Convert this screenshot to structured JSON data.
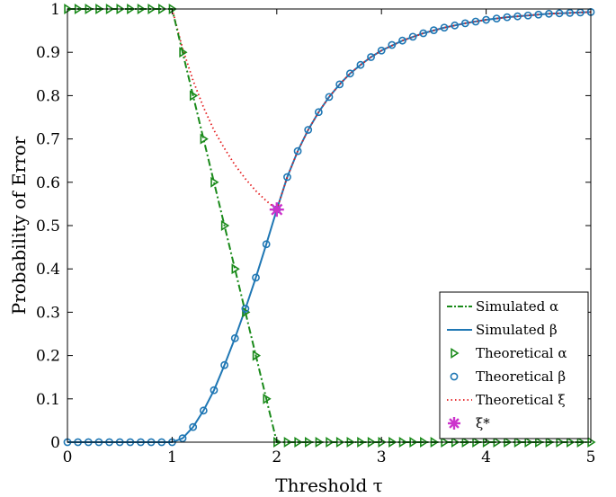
{
  "chart_data": {
    "type": "line",
    "xlabel": "Threshold τ",
    "ylabel": "Probability of Error",
    "xlim": [
      0,
      5
    ],
    "ylim": [
      0,
      1
    ],
    "x_ticks": [
      0,
      1,
      2,
      3,
      4,
      5
    ],
    "y_ticks": [
      0,
      0.1,
      0.2,
      0.3,
      0.4,
      0.5,
      0.6,
      0.7,
      0.8,
      0.9,
      1
    ],
    "grid": false,
    "legend_position": "bottom-right",
    "colors": {
      "alpha": "#1a8a1a",
      "beta": "#1f77b4",
      "xi": "#e41a1c",
      "xi_star": "#cc33cc"
    },
    "series": [
      {
        "name": "Simulated α",
        "style": "dash-dot",
        "x": [
          0,
          1,
          1.1,
          1.2,
          1.3,
          1.4,
          1.5,
          1.6,
          1.7,
          1.8,
          1.9,
          2,
          5
        ],
        "y": [
          1,
          1,
          0.9,
          0.8,
          0.7,
          0.6,
          0.5,
          0.4,
          0.3,
          0.2,
          0.1,
          0,
          0
        ]
      },
      {
        "name": "Simulated β",
        "style": "solid",
        "x": [
          0,
          1,
          1.1,
          1.2,
          1.3,
          1.4,
          1.5,
          1.6,
          1.7,
          1.8,
          1.9,
          2,
          2.1,
          2.2,
          2.3,
          2.4,
          2.5,
          2.6,
          2.7,
          2.8,
          2.9,
          3,
          3.2,
          3.4,
          3.6,
          3.8,
          4,
          4.2,
          4.4,
          4.6,
          4.8,
          5
        ],
        "y": [
          0,
          0,
          0.009,
          0.035,
          0.073,
          0.12,
          0.178,
          0.24,
          0.308,
          0.38,
          0.457,
          0.537,
          0.612,
          0.672,
          0.721,
          0.762,
          0.797,
          0.826,
          0.851,
          0.871,
          0.889,
          0.904,
          0.927,
          0.944,
          0.957,
          0.967,
          0.975,
          0.981,
          0.985,
          0.989,
          0.991,
          0.993
        ]
      },
      {
        "name": "Theoretical α",
        "style": "marker-triangle-right",
        "x": [
          0,
          0.1,
          0.2,
          0.3,
          0.4,
          0.5,
          0.6,
          0.7,
          0.8,
          0.9,
          1,
          1.1,
          1.2,
          1.3,
          1.4,
          1.5,
          1.6,
          1.7,
          1.8,
          1.9,
          2,
          2.1,
          2.2,
          2.3,
          2.4,
          2.5,
          2.6,
          2.7,
          2.8,
          2.9,
          3,
          3.1,
          3.2,
          3.3,
          3.4,
          3.5,
          3.6,
          3.7,
          3.8,
          3.9,
          4,
          4.1,
          4.2,
          4.3,
          4.4,
          4.5,
          4.6,
          4.7,
          4.8,
          4.9,
          5
        ],
        "y": [
          1,
          1,
          1,
          1,
          1,
          1,
          1,
          1,
          1,
          1,
          1,
          0.9,
          0.8,
          0.7,
          0.6,
          0.5,
          0.4,
          0.3,
          0.2,
          0.1,
          0,
          0,
          0,
          0,
          0,
          0,
          0,
          0,
          0,
          0,
          0,
          0,
          0,
          0,
          0,
          0,
          0,
          0,
          0,
          0,
          0,
          0,
          0,
          0,
          0,
          0,
          0,
          0,
          0,
          0,
          0
        ]
      },
      {
        "name": "Theoretical β",
        "style": "marker-circle",
        "x": [
          0,
          0.1,
          0.2,
          0.3,
          0.4,
          0.5,
          0.6,
          0.7,
          0.8,
          0.9,
          1,
          1.1,
          1.2,
          1.3,
          1.4,
          1.5,
          1.6,
          1.7,
          1.8,
          1.9,
          2,
          2.1,
          2.2,
          2.3,
          2.4,
          2.5,
          2.6,
          2.7,
          2.8,
          2.9,
          3,
          3.1,
          3.2,
          3.3,
          3.4,
          3.5,
          3.6,
          3.7,
          3.8,
          3.9,
          4,
          4.1,
          4.2,
          4.3,
          4.4,
          4.5,
          4.6,
          4.7,
          4.8,
          4.9,
          5
        ],
        "y": [
          0,
          0,
          0,
          0,
          0,
          0,
          0,
          0,
          0,
          0,
          0,
          0.009,
          0.035,
          0.073,
          0.12,
          0.178,
          0.24,
          0.308,
          0.38,
          0.457,
          0.537,
          0.612,
          0.672,
          0.721,
          0.762,
          0.797,
          0.826,
          0.851,
          0.871,
          0.889,
          0.904,
          0.917,
          0.927,
          0.936,
          0.944,
          0.951,
          0.957,
          0.962,
          0.967,
          0.971,
          0.975,
          0.978,
          0.981,
          0.983,
          0.985,
          0.987,
          0.989,
          0.99,
          0.991,
          0.992,
          0.993
        ]
      },
      {
        "name": "Theoretical ξ",
        "style": "dotted",
        "x": [
          1,
          1.1,
          1.2,
          1.3,
          1.4,
          1.5,
          1.6,
          1.7,
          1.8,
          1.9,
          2,
          2.1,
          2.2,
          2.3,
          2.4,
          2.5,
          2.6,
          2.7,
          2.8,
          2.9,
          3,
          3.2,
          3.4,
          3.6,
          3.8,
          4,
          4.2,
          4.4,
          4.6,
          4.8,
          5
        ],
        "y": [
          1,
          0.909,
          0.835,
          0.773,
          0.72,
          0.678,
          0.64,
          0.608,
          0.58,
          0.557,
          0.537,
          0.612,
          0.672,
          0.721,
          0.762,
          0.797,
          0.826,
          0.851,
          0.871,
          0.889,
          0.904,
          0.927,
          0.944,
          0.957,
          0.967,
          0.975,
          0.981,
          0.985,
          0.989,
          0.991,
          0.993
        ]
      },
      {
        "name": "ξ*",
        "style": "marker-asterisk",
        "x": [
          2
        ],
        "y": [
          0.537
        ]
      }
    ]
  }
}
